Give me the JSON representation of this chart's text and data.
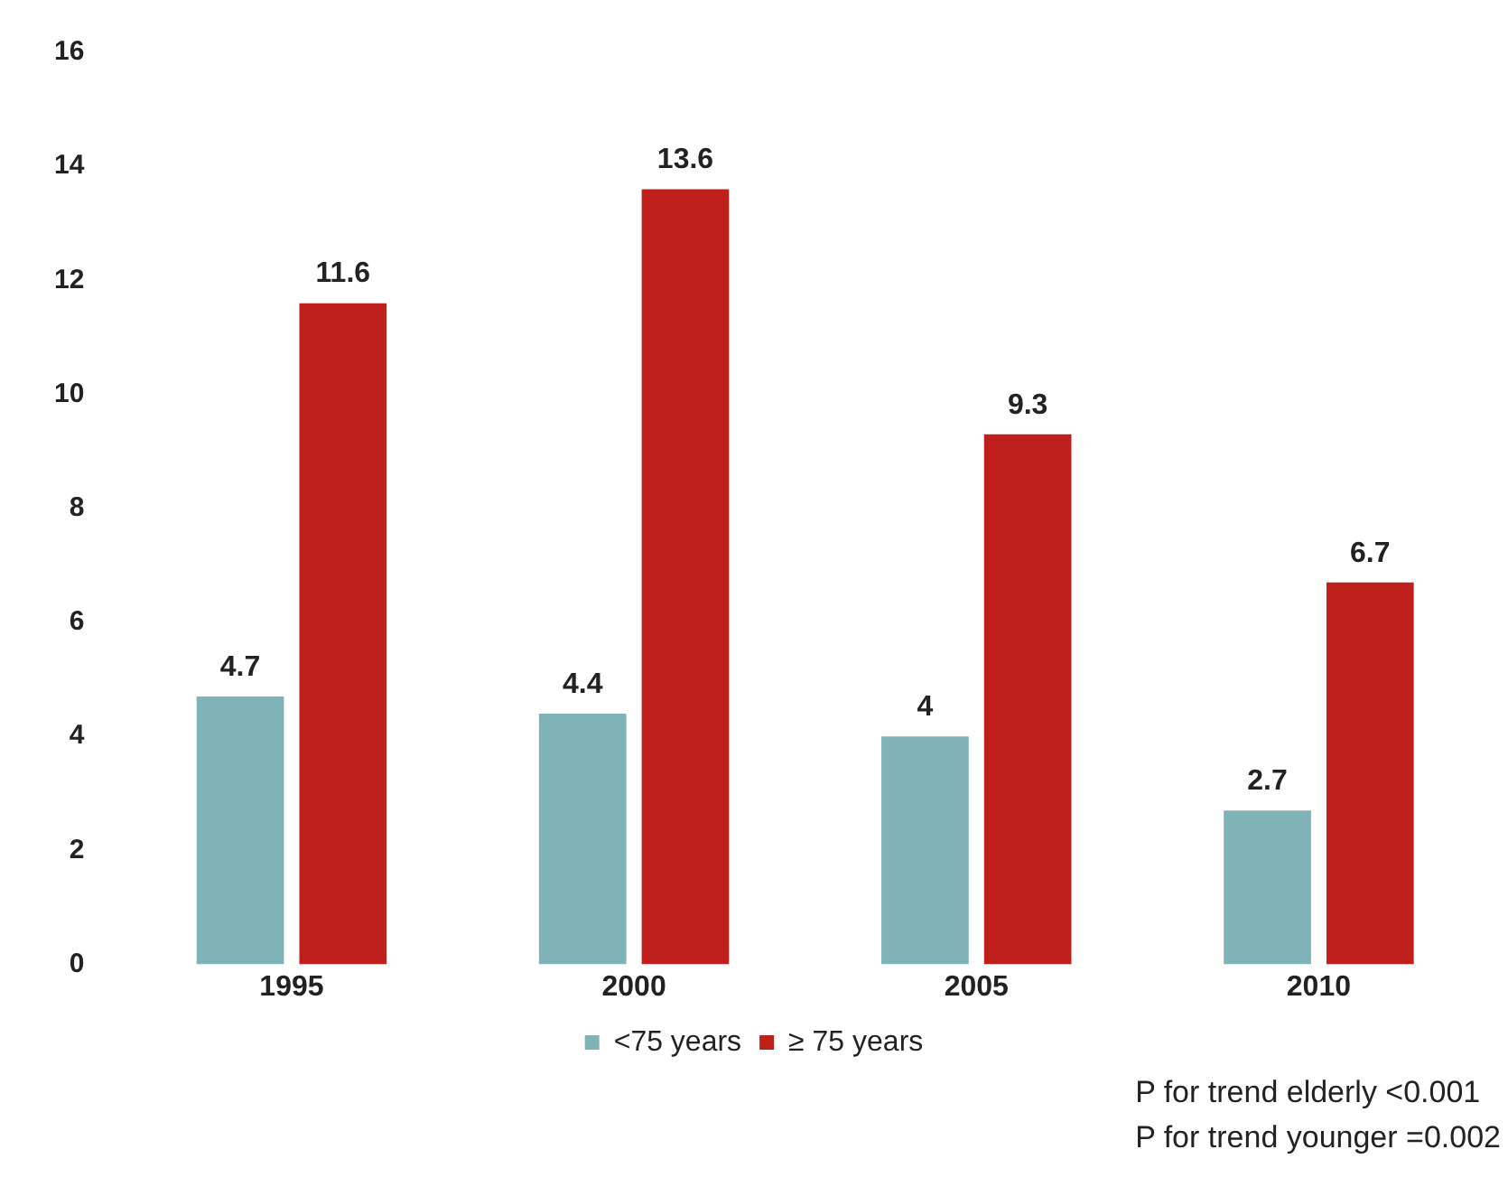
{
  "chart_data": {
    "type": "bar",
    "categories": [
      "1995",
      "2000",
      "2005",
      "2010"
    ],
    "series": [
      {
        "name": "<75 years",
        "color": "#7fb3b8",
        "values": [
          4.7,
          4.4,
          4,
          2.7
        ]
      },
      {
        "name": "≥ 75 years",
        "color": "#c0201c",
        "values": [
          11.6,
          13.6,
          9.3,
          6.7
        ]
      }
    ],
    "ylim": [
      0,
      16
    ],
    "yticks": [
      0,
      2,
      4,
      6,
      8,
      10,
      12,
      14,
      16
    ],
    "grid": false,
    "legend": "bottom",
    "data_labels": true,
    "annotations": [
      "P for trend elderly <0.001",
      "P for trend younger =0.002"
    ]
  }
}
